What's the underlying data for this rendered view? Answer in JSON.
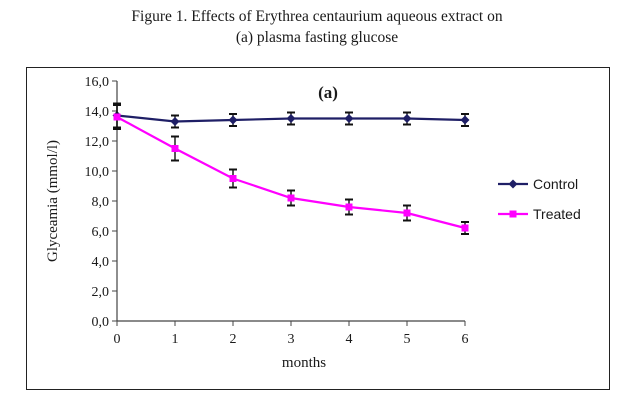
{
  "figure": {
    "caption_line1": "Figure 1. Effects of Erythrea centaurium aqueous extract on",
    "caption_line2": "(a) plasma fasting glucose"
  },
  "chart_data": {
    "type": "line",
    "panel_label": "(a)",
    "xlabel": "months",
    "ylabel": "Glyceamia (mmol/l)",
    "x": [
      0,
      1,
      2,
      3,
      4,
      5,
      6
    ],
    "x_ticks": [
      "0",
      "1",
      "2",
      "3",
      "4",
      "5",
      "6"
    ],
    "y_ticks": [
      "0,0",
      "2,0",
      "4,0",
      "6,0",
      "8,0",
      "10,0",
      "12,0",
      "14,0",
      "16,0"
    ],
    "ylim": [
      0,
      16
    ],
    "grid": false,
    "legend_position": "right",
    "series": [
      {
        "name": "Control",
        "color": "#1f1f66",
        "marker": "diamond",
        "values": [
          13.7,
          13.3,
          13.4,
          13.5,
          13.5,
          13.5,
          13.4
        ],
        "errors": [
          0.8,
          0.4,
          0.4,
          0.4,
          0.4,
          0.4,
          0.4
        ]
      },
      {
        "name": "Treated",
        "color": "#ff00ff",
        "marker": "square",
        "values": [
          13.6,
          11.5,
          9.5,
          8.2,
          7.6,
          7.2,
          6.2
        ],
        "errors": [
          0.8,
          0.8,
          0.6,
          0.5,
          0.5,
          0.5,
          0.4
        ]
      }
    ]
  }
}
